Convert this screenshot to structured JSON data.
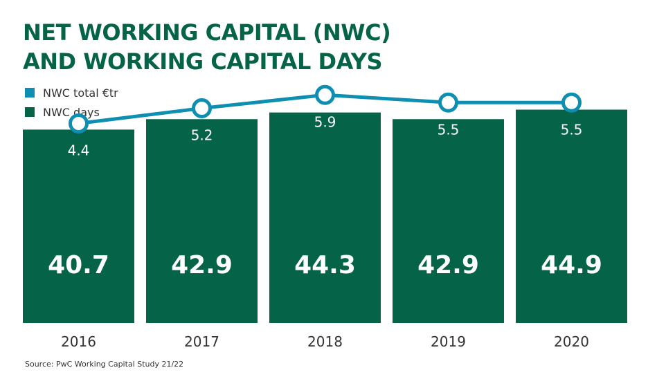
{
  "title_lines": [
    "NET WORKING CAPITAL (NWC)",
    "AND WORKING CAPITAL DAYS"
  ],
  "source": "Source: PwC Working Capital Study 21/22",
  "colors": {
    "title": "#056348",
    "bar": "#056348",
    "line": "#0e8fb2",
    "bar_label": "#ffffff",
    "axis_text": "#333333"
  },
  "chart_data": {
    "type": "bar",
    "categories": [
      "2016",
      "2017",
      "2018",
      "2019",
      "2020"
    ],
    "series": [
      {
        "name": "NWC days",
        "kind": "bar",
        "values": [
          40.7,
          42.9,
          44.3,
          42.9,
          44.9
        ],
        "labels": [
          "40.7",
          "42.9",
          "44.3",
          "42.9",
          "44.9"
        ]
      },
      {
        "name": "NWC total €tr",
        "kind": "line",
        "values": [
          4.4,
          5.2,
          5.9,
          5.5,
          5.5
        ],
        "labels": [
          "4.4",
          "5.2",
          "5.9",
          "5.5",
          "5.5"
        ]
      }
    ],
    "legend_position": "top-left",
    "grid": false
  }
}
